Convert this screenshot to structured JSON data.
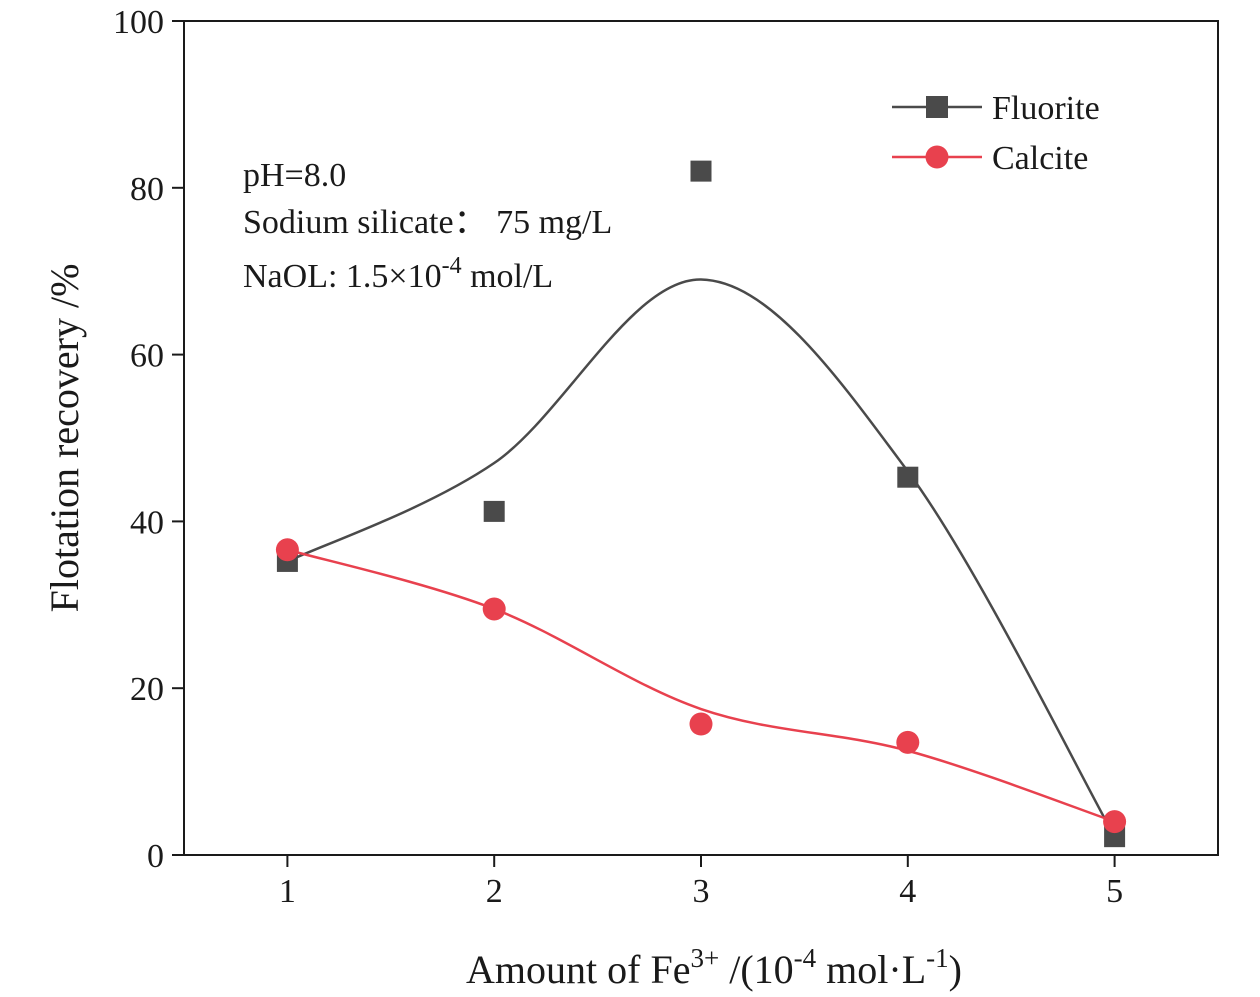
{
  "chart_data": {
    "type": "scatter",
    "xlabel": {
      "main": "Amount of Fe",
      "sup1": "3+",
      "mid": " /(10",
      "sup2": "-4",
      "mid2": " mol·L",
      "sup3": "-1",
      "end": ")"
    },
    "ylabel": "Flotation recovery /%",
    "xlim": [
      0.5,
      5.5
    ],
    "ylim": [
      0,
      100
    ],
    "x_ticks": [
      "1",
      "2",
      "3",
      "4",
      "5"
    ],
    "y_ticks": [
      "0",
      "20",
      "40",
      "60",
      "80",
      "100"
    ],
    "grid": false,
    "legend": "top-right",
    "series": [
      {
        "name": "Fluorite",
        "marker": "square",
        "color": "#4a4a4a",
        "x": [
          1,
          2,
          3,
          4,
          5
        ],
        "y": [
          35.2,
          41.2,
          82.0,
          45.3,
          2.2
        ]
      },
      {
        "name": "Calcite",
        "marker": "circle",
        "color": "#e8414e",
        "x": [
          1,
          2,
          3,
          4,
          5
        ],
        "y": [
          36.6,
          29.5,
          15.7,
          13.5,
          4.0
        ]
      }
    ],
    "annotations": {
      "line1": "pH=8.0",
      "line2": "Sodium silicate：  75 mg/L",
      "line3_main": "NaOL: 1.5×10",
      "line3_sup": "-4",
      "line3_end": " mol/L"
    }
  }
}
